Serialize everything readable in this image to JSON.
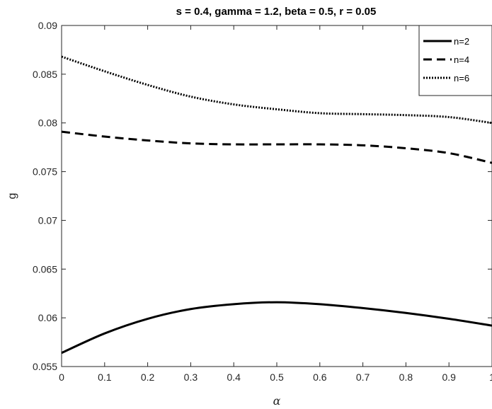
{
  "chart_data": {
    "type": "line",
    "title": "s = 0.4, gamma = 1.2, beta = 0.5, r = 0.05",
    "xlabel": "α",
    "ylabel": "g",
    "xlim": [
      0,
      1
    ],
    "ylim": [
      0.055,
      0.09
    ],
    "xticks": [
      "0",
      "0.1",
      "0.2",
      "0.3",
      "0.4",
      "0.5",
      "0.6",
      "0.7",
      "0.8",
      "0.9",
      "1"
    ],
    "yticks": [
      "0.055",
      "0.06",
      "0.065",
      "0.07",
      "0.075",
      "0.08",
      "0.085",
      "0.09"
    ],
    "grid": false,
    "legend_position": "top-right",
    "x": [
      0,
      0.1,
      0.2,
      0.3,
      0.4,
      0.5,
      0.6,
      0.7,
      0.8,
      0.9,
      1.0
    ],
    "series": [
      {
        "name": "n=2",
        "style": "solid",
        "values": [
          0.0564,
          0.0584,
          0.0599,
          0.0609,
          0.0614,
          0.0616,
          0.0614,
          0.061,
          0.0605,
          0.0599,
          0.0592
        ]
      },
      {
        "name": "n=4",
        "style": "dashed",
        "values": [
          0.0791,
          0.0786,
          0.0782,
          0.0779,
          0.0778,
          0.0778,
          0.0778,
          0.0777,
          0.0774,
          0.0769,
          0.0759
        ]
      },
      {
        "name": "n=6",
        "style": "dotted",
        "values": [
          0.0868,
          0.0853,
          0.0839,
          0.0827,
          0.0819,
          0.0814,
          0.081,
          0.0809,
          0.0808,
          0.0806,
          0.08
        ]
      }
    ]
  }
}
